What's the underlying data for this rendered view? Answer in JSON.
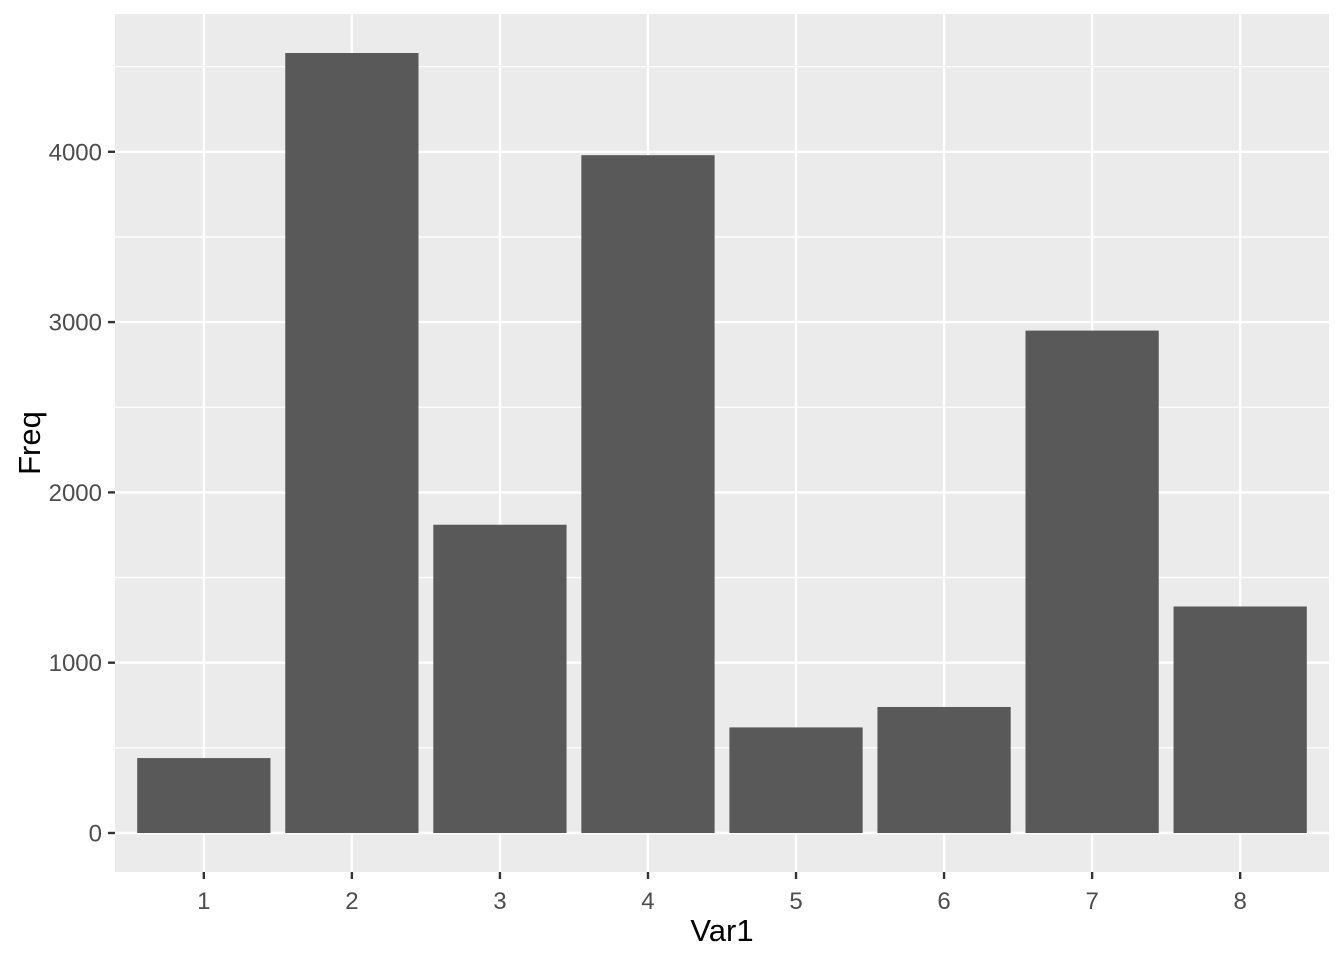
{
  "chart_data": {
    "type": "bar",
    "title": "",
    "xlabel": "Var1",
    "ylabel": "Freq",
    "categories": [
      "1",
      "2",
      "3",
      "4",
      "5",
      "6",
      "7",
      "8"
    ],
    "values": [
      440,
      4580,
      1810,
      3980,
      620,
      740,
      2950,
      1330
    ],
    "series_name": "Freq",
    "y_major_ticks": [
      0,
      1000,
      2000,
      3000,
      4000
    ],
    "y_minor_ticks": [
      500,
      1500,
      2500,
      3500,
      4500
    ],
    "y_render_range": [
      -229,
      4809
    ],
    "ylim_data": [
      0,
      4580
    ],
    "bar_width_fraction": 0.9,
    "grid": "on",
    "legend": "none",
    "theme": "ggplot2-gray",
    "colors": {
      "bar_fill": "#595959",
      "panel_background": "#EBEBEB",
      "grid_major": "#FFFFFF",
      "grid_minor": "#FFFFFF",
      "axis_text": "#4D4D4D",
      "axis_title": "#000000",
      "tick_mark": "#333333",
      "figure_background": "#FFFFFF"
    }
  }
}
